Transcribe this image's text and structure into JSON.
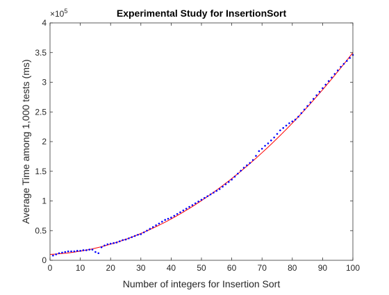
{
  "chart_data": {
    "type": "scatter",
    "title": "Experimental Study for InsertionSort",
    "xlabel": "Number of integers for Insertion Sort",
    "ylabel": "Average Time among 1,000 tests (ms)",
    "exponent_label": "×10",
    "exponent_power": "5",
    "xlim": [
      0,
      100
    ],
    "ylim": [
      0,
      4
    ],
    "y_scale_factor": 100000,
    "xticks": [
      0,
      10,
      20,
      30,
      40,
      50,
      60,
      70,
      80,
      90,
      100
    ],
    "yticks": [
      0,
      0.5,
      1,
      1.5,
      2,
      2.5,
      3,
      3.5,
      4
    ],
    "xtick_labels": [
      "0",
      "10",
      "20",
      "30",
      "40",
      "50",
      "60",
      "70",
      "80",
      "90",
      "100"
    ],
    "ytick_labels": [
      "0",
      "0.5",
      "1",
      "1.5",
      "2",
      "2.5",
      "3",
      "3.5",
      "4"
    ],
    "grid": false,
    "legend": "none",
    "series": [
      {
        "kind": "scatter",
        "color": "#0000ff",
        "x": [
          1,
          2,
          3,
          4,
          5,
          6,
          7,
          8,
          9,
          10,
          11,
          12,
          13,
          14,
          15,
          16,
          17,
          18,
          19,
          20,
          21,
          22,
          23,
          24,
          25,
          26,
          27,
          28,
          29,
          30,
          31,
          32,
          33,
          34,
          35,
          36,
          37,
          38,
          39,
          40,
          41,
          42,
          43,
          44,
          45,
          46,
          47,
          48,
          49,
          50,
          51,
          52,
          53,
          54,
          55,
          56,
          57,
          58,
          59,
          60,
          61,
          62,
          63,
          64,
          65,
          66,
          67,
          68,
          69,
          70,
          71,
          72,
          73,
          74,
          75,
          76,
          77,
          78,
          79,
          80,
          81,
          82,
          83,
          84,
          85,
          86,
          87,
          88,
          89,
          90,
          91,
          92,
          93,
          94,
          95,
          96,
          97,
          98,
          99,
          100
        ],
        "y": [
          0.08,
          0.1,
          0.12,
          0.13,
          0.14,
          0.15,
          0.15,
          0.15,
          0.16,
          0.16,
          0.17,
          0.17,
          0.18,
          0.18,
          0.14,
          0.12,
          0.22,
          0.25,
          0.27,
          0.28,
          0.29,
          0.3,
          0.32,
          0.34,
          0.35,
          0.37,
          0.39,
          0.41,
          0.43,
          0.44,
          0.47,
          0.5,
          0.53,
          0.56,
          0.59,
          0.62,
          0.65,
          0.68,
          0.7,
          0.72,
          0.75,
          0.78,
          0.81,
          0.84,
          0.87,
          0.9,
          0.93,
          0.96,
          0.99,
          1.02,
          1.05,
          1.08,
          1.11,
          1.14,
          1.17,
          1.2,
          1.24,
          1.28,
          1.32,
          1.36,
          1.41,
          1.46,
          1.51,
          1.56,
          1.6,
          1.64,
          1.69,
          1.76,
          1.84,
          1.88,
          1.93,
          1.97,
          2.02,
          2.07,
          2.13,
          2.19,
          2.23,
          2.27,
          2.31,
          2.34,
          2.37,
          2.42,
          2.48,
          2.54,
          2.6,
          2.66,
          2.72,
          2.78,
          2.84,
          2.9,
          2.96,
          3.02,
          3.08,
          3.14,
          3.2,
          3.26,
          3.31,
          3.36,
          3.41,
          3.46
        ]
      },
      {
        "kind": "line",
        "color": "#ff0000",
        "fit": "quadratic",
        "coefficients": {
          "a": 0.000318,
          "b": 0.0022,
          "c": 0.1
        }
      }
    ]
  }
}
